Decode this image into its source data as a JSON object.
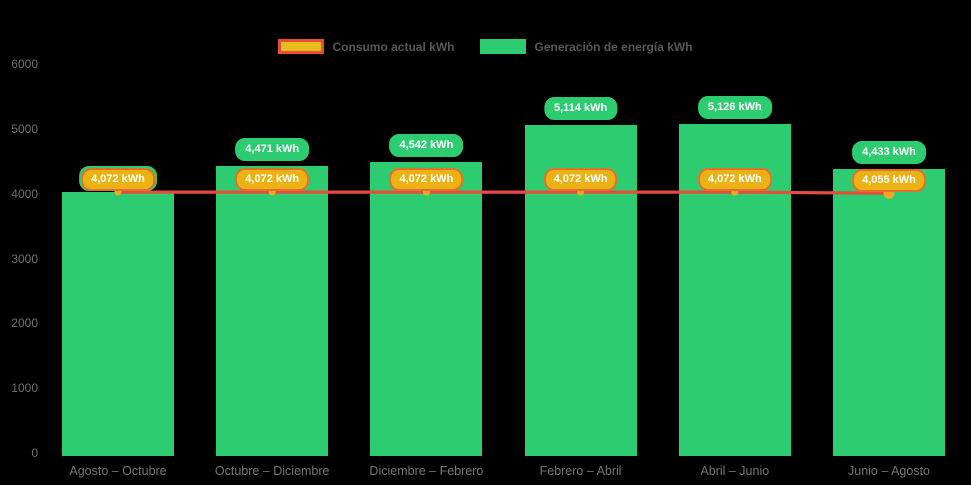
{
  "legend": {
    "consumption_label": "Consumo actual kWh",
    "generation_label": "Generación de energía kWh"
  },
  "colors": {
    "background": "#000000",
    "bar_green": "#2ecc71",
    "line_red": "#e74c3c",
    "dot_orange": "#f5a623",
    "generation_pill_bg": "#2ecc71",
    "consumption_pill_bg": "#ecb214",
    "consumption_pill_border": "#e0722f",
    "legend_consumption_swatch_bg": "#e6bd19",
    "legend_consumption_swatch_border": "#e74c3c",
    "legend_generation_swatch_bg": "#2ecc71",
    "legend_text": "#575757",
    "axis_text": "#6f6f6f",
    "xaxis_text": "#757575"
  },
  "chart_data": {
    "type": "bar",
    "categories": [
      "Agosto – Octubre",
      "Octubre – Diciembre",
      "Diciembre – Febrero",
      "Febrero – Abril",
      "Abril – Junio",
      "Junio – Agosto"
    ],
    "series": [
      {
        "name": "Generación de energía kWh",
        "type": "bar",
        "values": [
          4072,
          4471,
          4542,
          5114,
          5126,
          4433
        ],
        "labels": [
          "4,072 kWh",
          "4,471 kWh",
          "4,542 kWh",
          "5,114 kWh",
          "5,126 kWh",
          "4,433 kWh"
        ]
      },
      {
        "name": "Consumo actual kWh",
        "type": "line",
        "values": [
          4072,
          4072,
          4072,
          4072,
          4072,
          4055
        ],
        "labels": [
          "4,072 kWh",
          "4,072 kWh",
          "4,072 kWh",
          "4,072 kWh",
          "4,072 kWh",
          "4,055 kWh"
        ]
      }
    ],
    "title": "",
    "xlabel": "",
    "ylabel": "",
    "ylim": [
      0,
      6000
    ],
    "yticks": [
      0,
      1000,
      2000,
      3000,
      4000,
      5000,
      6000
    ],
    "grid": false,
    "legend_position": "top-center"
  }
}
